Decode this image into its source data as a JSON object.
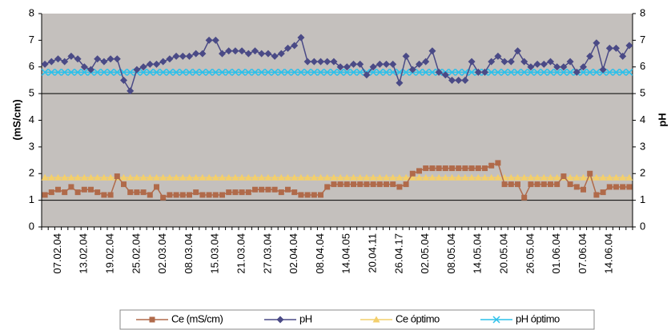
{
  "chart_data": {
    "type": "line",
    "y_label": "(mS/cm)",
    "y2_label": "pH",
    "categories": [
      null,
      null,
      "07.02.04",
      null,
      null,
      null,
      "13.02.04",
      null,
      null,
      null,
      "19.02.04",
      null,
      null,
      null,
      "25.02.04",
      null,
      null,
      null,
      "02.03.04",
      null,
      null,
      null,
      "08.03.04",
      null,
      null,
      null,
      "15.03.04",
      null,
      null,
      null,
      "21.03.04",
      null,
      null,
      null,
      "27.03.04",
      null,
      null,
      null,
      "02.04.04",
      null,
      null,
      null,
      "08.04.04",
      null,
      null,
      null,
      "14.04.05",
      null,
      null,
      null,
      "20.04.11",
      null,
      null,
      null,
      "26.04.17",
      null,
      null,
      null,
      "02.05.04",
      null,
      null,
      null,
      "08.05.04",
      null,
      null,
      null,
      "14.05.04",
      null,
      null,
      null,
      "20.05.04",
      null,
      null,
      null,
      "26.05.04",
      null,
      null,
      null,
      "01.06.04",
      null,
      null,
      null,
      "07.06.04",
      null,
      null,
      null,
      "14.06.04",
      null,
      null,
      null
    ],
    "series": [
      {
        "name": "Ce (mS/cm)",
        "color": "#b06a4a",
        "marker": "square",
        "values": [
          1.2,
          1.3,
          1.4,
          1.3,
          1.5,
          1.3,
          1.4,
          1.4,
          1.3,
          1.2,
          1.2,
          1.9,
          1.6,
          1.3,
          1.3,
          1.3,
          1.2,
          1.5,
          1.1,
          1.2,
          1.2,
          1.2,
          1.2,
          1.3,
          1.2,
          1.2,
          1.2,
          1.2,
          1.3,
          1.3,
          1.3,
          1.3,
          1.4,
          1.4,
          1.4,
          1.4,
          1.3,
          1.4,
          1.3,
          1.2,
          1.2,
          1.2,
          1.2,
          1.5,
          1.6,
          1.6,
          1.6,
          1.6,
          1.6,
          1.6,
          1.6,
          1.6,
          1.6,
          1.6,
          1.5,
          1.6,
          2.0,
          2.1,
          2.2,
          2.2,
          2.2,
          2.2,
          2.2,
          2.2,
          2.2,
          2.2,
          2.2,
          2.2,
          2.3,
          2.4,
          1.6,
          1.6,
          1.6,
          1.1,
          1.6,
          1.6,
          1.6,
          1.6,
          1.6,
          1.9,
          1.6,
          1.5,
          1.4,
          2.0,
          1.2,
          1.3,
          1.5,
          1.5,
          1.5,
          1.5
        ]
      },
      {
        "name": "pH",
        "color": "#4a4a86",
        "marker": "diamond",
        "axis": "y2",
        "values": [
          6.1,
          6.2,
          6.3,
          6.2,
          6.4,
          6.3,
          6.0,
          5.9,
          6.3,
          6.2,
          6.3,
          6.3,
          5.5,
          5.1,
          5.9,
          6.0,
          6.1,
          6.1,
          6.2,
          6.3,
          6.4,
          6.4,
          6.4,
          6.5,
          6.5,
          7.0,
          7.0,
          6.5,
          6.6,
          6.6,
          6.6,
          6.5,
          6.6,
          6.5,
          6.5,
          6.4,
          6.5,
          6.7,
          6.8,
          7.1,
          6.2,
          6.2,
          6.2,
          6.2,
          6.2,
          6.0,
          6.0,
          6.1,
          6.1,
          5.7,
          6.0,
          6.1,
          6.1,
          6.1,
          5.4,
          6.4,
          5.9,
          6.1,
          6.2,
          6.6,
          5.8,
          5.7,
          5.5,
          5.5,
          5.5,
          6.2,
          5.8,
          5.8,
          6.2,
          6.4,
          6.2,
          6.2,
          6.6,
          6.2,
          6.0,
          6.1,
          6.1,
          6.2,
          6.0,
          6.0,
          6.2,
          5.8,
          6.0,
          6.4,
          6.9,
          5.9,
          6.7,
          6.7,
          6.4,
          6.8
        ]
      },
      {
        "name": "Ce óptimo",
        "color": "#f3cf6c",
        "marker": "triangle",
        "values": [
          1.85,
          1.85,
          1.85,
          1.85,
          1.85,
          1.85,
          1.85,
          1.85,
          1.85,
          1.85,
          1.85,
          1.85,
          1.85,
          1.85,
          1.85,
          1.85,
          1.85,
          1.85,
          1.85,
          1.85,
          1.85,
          1.85,
          1.85,
          1.85,
          1.85,
          1.85,
          1.85,
          1.85,
          1.85,
          1.85,
          1.85,
          1.85,
          1.85,
          1.85,
          1.85,
          1.85,
          1.85,
          1.85,
          1.85,
          1.85,
          1.85,
          1.85,
          1.85,
          1.85,
          1.85,
          1.85,
          1.85,
          1.85,
          1.85,
          1.85,
          1.85,
          1.85,
          1.85,
          1.85,
          1.85,
          1.85,
          1.85,
          1.85,
          1.85,
          1.85,
          1.85,
          1.85,
          1.85,
          1.85,
          1.85,
          1.85,
          1.85,
          1.85,
          1.85,
          1.85,
          1.85,
          1.85,
          1.85,
          1.85,
          1.85,
          1.85,
          1.85,
          1.85,
          1.85,
          1.85,
          1.85,
          1.85,
          1.85,
          1.85,
          1.85,
          1.85,
          1.85,
          1.85,
          1.85,
          1.85
        ]
      },
      {
        "name": "pH óptimo",
        "color": "#2cc0ea",
        "marker": "x",
        "axis": "y2",
        "values": [
          5.8,
          5.8,
          5.8,
          5.8,
          5.8,
          5.8,
          5.8,
          5.8,
          5.8,
          5.8,
          5.8,
          5.8,
          5.8,
          5.8,
          5.8,
          5.8,
          5.8,
          5.8,
          5.8,
          5.8,
          5.8,
          5.8,
          5.8,
          5.8,
          5.8,
          5.8,
          5.8,
          5.8,
          5.8,
          5.8,
          5.8,
          5.8,
          5.8,
          5.8,
          5.8,
          5.8,
          5.8,
          5.8,
          5.8,
          5.8,
          5.8,
          5.8,
          5.8,
          5.8,
          5.8,
          5.8,
          5.8,
          5.8,
          5.8,
          5.8,
          5.8,
          5.8,
          5.8,
          5.8,
          5.8,
          5.8,
          5.8,
          5.8,
          5.8,
          5.8,
          5.8,
          5.8,
          5.8,
          5.8,
          5.8,
          5.8,
          5.8,
          5.8,
          5.8,
          5.8,
          5.8,
          5.8,
          5.8,
          5.8,
          5.8,
          5.8,
          5.8,
          5.8,
          5.8,
          5.8,
          5.8,
          5.8,
          5.8,
          5.8,
          5.8,
          5.8,
          5.8,
          5.8,
          5.8,
          5.8
        ]
      }
    ],
    "ylim": [
      0,
      8
    ],
    "yticks": [
      0,
      1,
      2,
      3,
      4,
      5,
      6,
      7,
      8
    ],
    "y2lim": [
      0,
      8
    ],
    "y2ticks": [
      0,
      1,
      2,
      3,
      4,
      5,
      6,
      7,
      8
    ],
    "grid_values": [
      1,
      5
    ],
    "background": "#c4c0bd",
    "legend": "bottom"
  }
}
